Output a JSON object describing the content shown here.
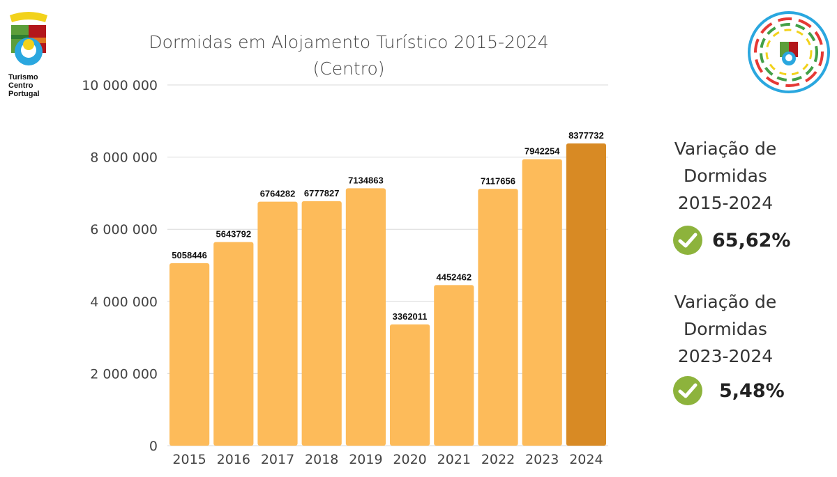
{
  "logo_left": {
    "text": [
      "Turismo",
      "Centro",
      "Portugal"
    ]
  },
  "chart_data": {
    "type": "bar",
    "title": "Dormidas em Alojamento Turístico 2015-2024",
    "subtitle": "(Centro)",
    "categories": [
      "2015",
      "2016",
      "2017",
      "2018",
      "2019",
      "2020",
      "2021",
      "2022",
      "2023",
      "2024"
    ],
    "values": [
      5058446,
      5643792,
      6764282,
      6777827,
      7134863,
      3362011,
      4452462,
      7117656,
      7942254,
      8377732
    ],
    "data_labels": [
      "5058446",
      "5643792",
      "6764282",
      "6777827",
      "7134863",
      "3362011",
      "4452462",
      "7117656",
      "7942254",
      "8377732"
    ],
    "ylim": [
      0,
      10000000
    ],
    "yticks": [
      0,
      2000000,
      4000000,
      6000000,
      8000000,
      10000000
    ],
    "ytick_labels": [
      "0",
      "2 000 000",
      "4 000 000",
      "6 000 000",
      "8 000 000",
      "10 000 000"
    ],
    "grid": true,
    "colors": {
      "bar": "#fdbb5a",
      "highlight": "#d88a24",
      "grid": "#d9d9d9"
    }
  },
  "side": {
    "block1": {
      "l1": "Variação de",
      "l2": "Dormidas",
      "l3": "2015-2024",
      "value": "65,62%"
    },
    "block2": {
      "l1": "Variação de",
      "l2": "Dormidas",
      "l3": "2023-2024",
      "value": "5,48%"
    },
    "check_color": "#8db33c"
  }
}
